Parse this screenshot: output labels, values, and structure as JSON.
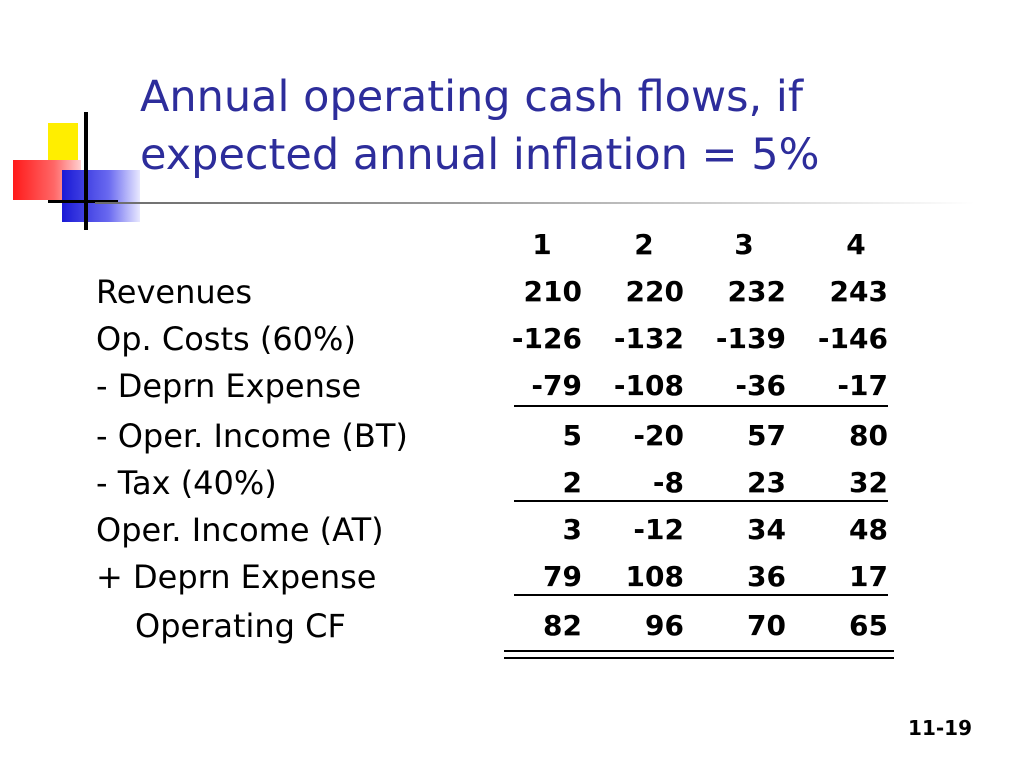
{
  "title": {
    "line1": "Annual operating cash flows, if",
    "line2": "expected annual inflation = 5%"
  },
  "table": {
    "columns": [
      "1",
      "2",
      "3",
      "4"
    ],
    "rows": [
      {
        "label": "Revenues",
        "values": [
          "210",
          "220",
          "232",
          "243"
        ]
      },
      {
        "label": "Op. Costs (60%)",
        "values": [
          "-126",
          "-132",
          "-139",
          "-146"
        ]
      },
      {
        "label": "- Deprn Expense",
        "values": [
          "-79",
          "-108",
          "-36",
          "-17"
        ]
      },
      {
        "label": "- Oper. Income (BT)",
        "values": [
          "5",
          "-20",
          "57",
          "80"
        ]
      },
      {
        "label": "- Tax (40%)",
        "values": [
          "2",
          "-8",
          "23",
          "32"
        ]
      },
      {
        "label": "Oper. Income (AT)",
        "values": [
          "3",
          "-12",
          "34",
          "48"
        ]
      },
      {
        "label": "+ Deprn Expense",
        "values": [
          "79",
          "108",
          "36",
          "17"
        ]
      },
      {
        "label": "Operating CF",
        "values": [
          "82",
          "96",
          "70",
          "65"
        ]
      }
    ]
  },
  "page_number": "11-19",
  "colors": {
    "title": "#2d2d9b",
    "logo_yellow": "#ffee00",
    "logo_red": "#ff1a1a",
    "logo_blue": "#1a1ad6"
  },
  "icons": [
    "slide-logo-icon"
  ]
}
